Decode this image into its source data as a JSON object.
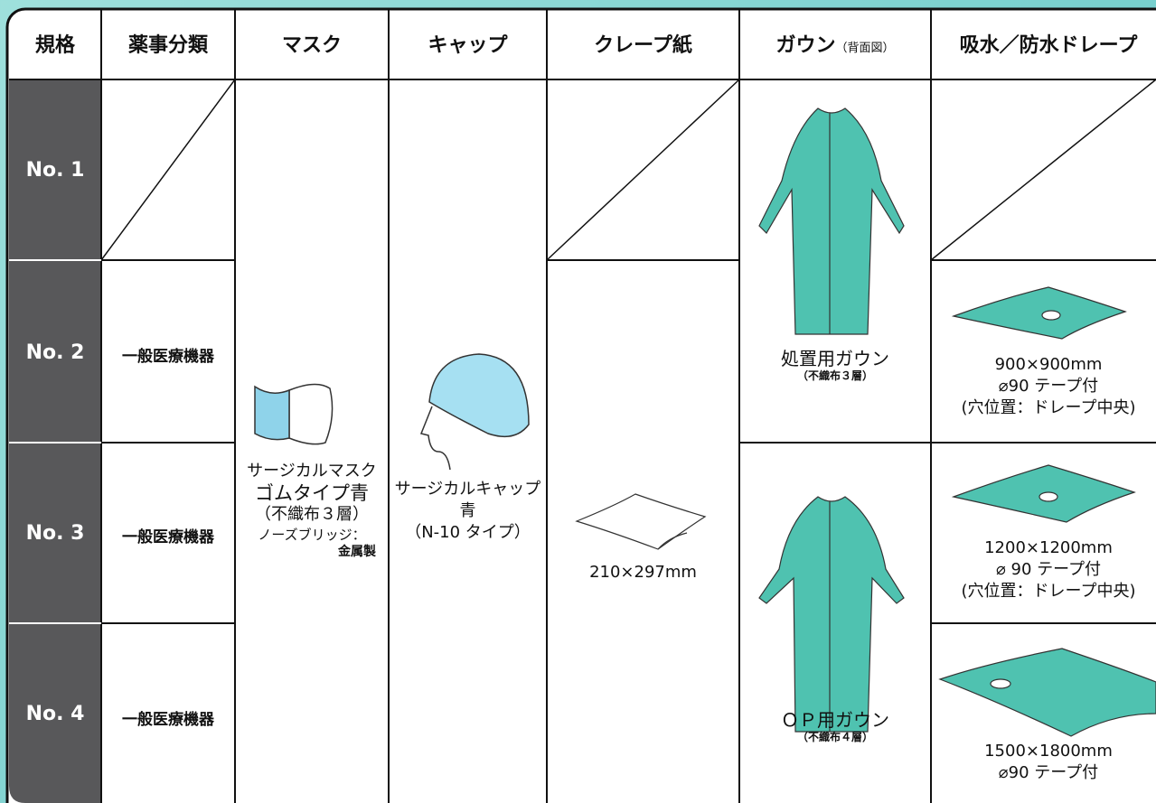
{
  "headers": [
    "規格",
    "薬事分類",
    "マスク",
    "キャップ",
    "クレープ紙",
    "ガウン",
    "吸水／防水ドレープ"
  ],
  "gown_header_note": "（背面図）",
  "rows": [
    {
      "label": "No. 1"
    },
    {
      "label": "No. 2",
      "classification": "一般医療機器",
      "drape": [
        "900×900mm",
        "⌀90 テープ付",
        "(穴位置：ドレープ中央)"
      ]
    },
    {
      "label": "No. 3",
      "classification": "一般医療機器",
      "drape": [
        "1200×1200mm",
        "⌀ 90 テープ付",
        "(穴位置：ドレープ中央)"
      ]
    },
    {
      "label": "No. 4",
      "classification": "一般医療機器",
      "drape": [
        "1500×1800mm",
        "⌀90 テープ付"
      ]
    }
  ],
  "mask": {
    "lines": [
      "サージカルマスク",
      "ゴムタイプ青",
      "（不織布３層）",
      "ノーズブリッジ：",
      "金属製"
    ]
  },
  "cap": {
    "lines": [
      "サージカルキャップ",
      "青",
      "（N-10 タイプ）"
    ]
  },
  "crepe": {
    "size": "210×297mm"
  },
  "gowns": [
    {
      "name": "処置用ガウン",
      "note": "（不織布３層）"
    },
    {
      "name": "ＯＰ用ガウン",
      "note": "（不織布４層）"
    }
  ]
}
